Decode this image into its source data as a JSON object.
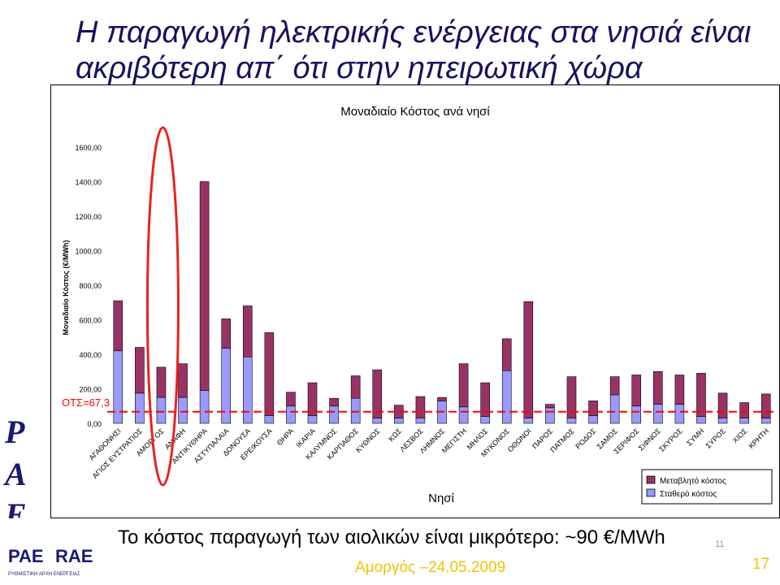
{
  "slide": {
    "title": "Η παραγωγή ηλεκτρικής ενέργειας στα νησιά είναι ακριβότερη απ΄ ότι στην ηπειρωτική χώρα",
    "bottom_text": "Το κόστος παραγωγή των αιολικών είναι μικρότερο: ~90 €/MWh",
    "footer_date": "Αμοργός –24.05.2009",
    "page_number": "17",
    "small_number": "11",
    "brand_letters": [
      "P",
      "A",
      "E"
    ],
    "logo": {
      "text_left": "PAE",
      "text_right": "RAE",
      "subtitle": "ΡΥΘΜΙΣΤΙΚΗ ΑΡΧΗ ΕΝΕΡΓΕΙΑΣ"
    },
    "colors": {
      "title": "#17125e",
      "footer_text": "#f2c300",
      "variable_cost": "#993366",
      "fixed_cost": "#9999ff",
      "ots_line": "#ff0000",
      "highlight_ellipse": "#e8231e",
      "logo": "#1a1a70"
    }
  },
  "chart_data": {
    "type": "bar",
    "stacked": true,
    "title": "Μοναδιαίο Κόστος ανά νησί",
    "xlabel": "Νησί",
    "ylabel": "Μοναδιαίο Κόστος (€/MWh)",
    "ylim": [
      0,
      1600
    ],
    "yticks": [
      "0,00",
      "200,00",
      "400,00",
      "600,00",
      "800,00",
      "1000,00",
      "1200,00",
      "1400,00",
      "1600,00"
    ],
    "grid": false,
    "legend_position": "bottom-right",
    "reference_line": {
      "label": "ΟΤΣ=67,3",
      "value": 67.3
    },
    "highlight": "ΑΜΟΡΓΟΣ",
    "categories": [
      "ΑΓΑΘΟΝΗΣΙ",
      "ΑΓΙΟΣ ΕΥΣΤΡΑΤΙΟΣ",
      "ΑΜΟΡΓΟΣ",
      "ΑΝΑΦΗ",
      "ΑΝΤΙΚΥΘΗΡΑ",
      "ΑΣΤΥΠΑΛΑΙΑ",
      "ΔΟΝΟΥΣΑ",
      "ΕΡΕΙΚΟΥΣΑ",
      "ΘΗΡΑ",
      "ΙΚΑΡΙΑ",
      "ΚΑΛΥΜΝΟΣ",
      "ΚΑΡΠΑΘΟΣ",
      "ΚΥΘΝΟΣ",
      "ΚΩΣ",
      "ΛΕΣΒΟΣ",
      "ΛΗΜΝΟΣ",
      "ΜΕΓΙΣΤΗ",
      "ΜΗΛΟΣ",
      "ΜΥΚΟΝΟΣ",
      "ΟΘΩΝΟΙ",
      "ΠΑΡΟΣ",
      "ΠΑΤΜΟΣ",
      "ΡΟΔΟΣ",
      "ΣΑΜΟΣ",
      "ΣΕΡΙΦΟΣ",
      "ΣΙΦΝΟΣ",
      "ΣΚΥΡΟΣ",
      "ΣΥΜΗ",
      "ΣΥΡΟΣ",
      "ΧΙΟΣ",
      "ΚΡΗΤΗ"
    ],
    "series": [
      {
        "name": "Σταθερό κόστος",
        "values": [
          420,
          175,
          150,
          150,
          190,
          435,
          385,
          45,
          100,
          45,
          100,
          145,
          30,
          30,
          30,
          130,
          95,
          40,
          305,
          30,
          90,
          30,
          45,
          165,
          100,
          110,
          110,
          40,
          30,
          30,
          30
        ]
      },
      {
        "name": "Μεταβλητό κόστος",
        "values": [
          290,
          265,
          175,
          195,
          1210,
          170,
          295,
          480,
          80,
          190,
          45,
          130,
          280,
          75,
          125,
          20,
          250,
          195,
          185,
          675,
          20,
          240,
          85,
          105,
          180,
          190,
          170,
          250,
          145,
          90,
          140
        ]
      }
    ]
  }
}
